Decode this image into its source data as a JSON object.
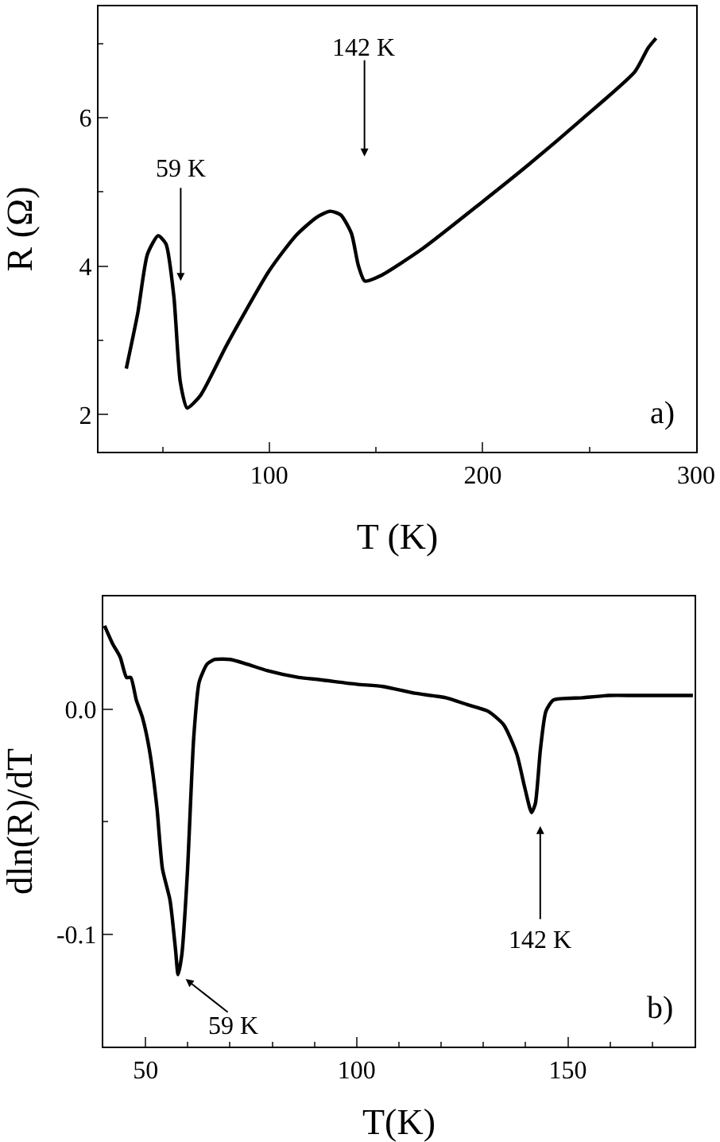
{
  "chart_data": [
    {
      "type": "line",
      "xlabel": "T (K)",
      "ylabel": "R (Ω)",
      "xlim": [
        20,
        300
      ],
      "ylim": [
        1.5,
        7.5
      ],
      "xticks": [
        {
          "value": 50,
          "label": null
        },
        100,
        {
          "value": 150,
          "label": null
        },
        200,
        {
          "value": 250,
          "label": null
        },
        300
      ],
      "yticks": [
        2,
        {
          "value": 3,
          "label": null
        },
        4,
        {
          "value": 5,
          "label": null
        },
        6,
        {
          "value": 7,
          "label": null
        }
      ],
      "series": [
        {
          "color": "#000000",
          "x": [
            33,
            38.4,
            42.9,
            47.9,
            51.6,
            55.3,
            58.3,
            61.5,
            67.8,
            80.1,
            100,
            112.4,
            122.3,
            128.5,
            133.5,
            138.5,
            141.7,
            144.7,
            152.1,
            172,
            200,
            221.6,
            246.5,
            271.3,
            277.5,
            281.2
          ],
          "values": [
            2.62,
            3.37,
            4.16,
            4.41,
            4.3,
            3.59,
            2.44,
            2.09,
            2.26,
            2.94,
            3.94,
            4.41,
            4.66,
            4.74,
            4.69,
            4.44,
            4.01,
            3.8,
            3.87,
            4.24,
            4.87,
            5.37,
            5.98,
            6.62,
            6.94,
            7.07
          ]
        }
      ],
      "annotations": [
        {
          "text": "59 K",
          "x": 58.5,
          "y": 3.8
        },
        "142 K",
        "a)"
      ],
      "grid": false,
      "marker": "none",
      "line_style": "solid"
    },
    {
      "type": "line",
      "xlabel": "T(K)",
      "ylabel": "dln(R)/dT",
      "xlim": [
        40,
        180
      ],
      "ylim": [
        -0.15,
        0.05
      ],
      "xticks": [
        50,
        {
          "value": 60,
          "label": null
        },
        {
          "value": 70,
          "label": null
        },
        {
          "value": 80,
          "label": null
        },
        {
          "value": 90,
          "label": null
        },
        100,
        {
          "value": 110,
          "label": null
        },
        {
          "value": 120,
          "label": null
        },
        {
          "value": 130,
          "label": null
        },
        {
          "value": 140,
          "label": null
        },
        150,
        {
          "value": 160,
          "label": null
        },
        {
          "value": 170,
          "label": null
        }
      ],
      "yticks": [
        {
          "value": -0.15,
          "label": null
        },
        {
          "value": -0.1,
          "label": "-0.1"
        },
        {
          "value": -0.05,
          "label": null
        },
        {
          "value": 0,
          "label": "0.0"
        },
        {
          "value": 0.05,
          "label": null
        }
      ],
      "series": [
        {
          "color": "#000000",
          "x": [
            40.3,
            42.2,
            44,
            45.5,
            46.5,
            47.8,
            49.3,
            50.9,
            52.7,
            54,
            55.8,
            57.1,
            57.7,
            58.6,
            59.9,
            61.4,
            62.7,
            64.6,
            66.4,
            70.1,
            73.9,
            78.9,
            86.3,
            91.3,
            100,
            106.2,
            113.7,
            121.1,
            126.1,
            131.1,
            134.8,
            137.9,
            139.8,
            141.4,
            142.3,
            143.5,
            144.8,
            146.6,
            153.5,
            159.7,
            165.9,
            173.4,
            179.6
          ],
          "values": [
            0.037,
            0.029,
            0.023,
            0.014,
            0.014,
            0.004,
            -0.004,
            -0.018,
            -0.044,
            -0.071,
            -0.085,
            -0.107,
            -0.118,
            -0.109,
            -0.073,
            -0.013,
            0.012,
            0.02,
            0.022,
            0.022,
            0.02,
            0.017,
            0.014,
            0.013,
            0.011,
            0.01,
            0.007,
            0.005,
            0.002,
            -0.001,
            -0.007,
            -0.02,
            -0.035,
            -0.046,
            -0.042,
            -0.018,
            -0.001,
            0.004,
            0.005,
            0.006,
            0.006,
            0.006,
            0.006
          ]
        }
      ],
      "annotations": [
        {
          "text": "59 K",
          "x": 59.5,
          "y": -0.12
        },
        "142 K",
        "b)"
      ],
      "grid": false,
      "marker": "none",
      "line_style": "solid"
    }
  ]
}
